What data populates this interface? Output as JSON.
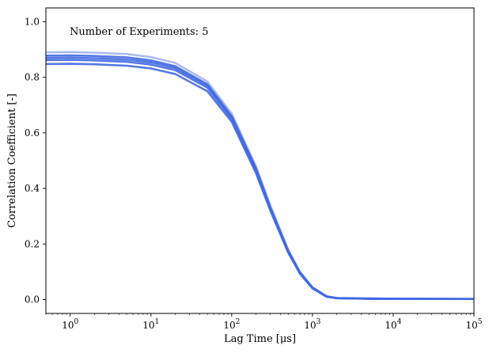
{
  "chart_data": {
    "type": "line",
    "annotation": "Number of Experiments: 5",
    "xlabel": "Lag Time [μs]",
    "ylabel": "Correlation Coefficient [-]",
    "xscale": "log",
    "xlim": [
      0.5,
      100000
    ],
    "ylim": [
      -0.05,
      1.05
    ],
    "x_ticks": [
      1,
      10,
      100,
      1000,
      10000,
      100000
    ],
    "x_tick_labels": [
      {
        "base": "10",
        "exp": "0"
      },
      {
        "base": "10",
        "exp": "1"
      },
      {
        "base": "10",
        "exp": "2"
      },
      {
        "base": "10",
        "exp": "3"
      },
      {
        "base": "10",
        "exp": "4"
      },
      {
        "base": "10",
        "exp": "5"
      }
    ],
    "y_ticks": [
      0.0,
      0.2,
      0.4,
      0.6,
      0.8,
      1.0
    ],
    "y_tick_labels": [
      "0.0",
      "0.2",
      "0.4",
      "0.6",
      "0.8",
      "1.0"
    ],
    "grid": false,
    "line_color": "#4169e1",
    "x": [
      0.5,
      1,
      2,
      5,
      10,
      20,
      50,
      100,
      200,
      300,
      500,
      700,
      1000,
      1500,
      2000,
      3000,
      5000,
      10000,
      30000,
      100000
    ],
    "series": [
      {
        "values": [
          0.89,
          0.891,
          0.889,
          0.884,
          0.873,
          0.852,
          0.785,
          0.67,
          0.48,
          0.34,
          0.18,
          0.1,
          0.045,
          0.012,
          0.006,
          0.005,
          0.004,
          0.003,
          0.003,
          0.003
        ]
      },
      {
        "values": [
          0.878,
          0.879,
          0.877,
          0.872,
          0.861,
          0.84,
          0.775,
          0.66,
          0.472,
          0.333,
          0.176,
          0.098,
          0.043,
          0.011,
          0.005,
          0.004,
          0.004,
          0.003,
          0.003,
          0.002
        ]
      },
      {
        "values": [
          0.87,
          0.871,
          0.869,
          0.864,
          0.854,
          0.834,
          0.77,
          0.656,
          0.468,
          0.33,
          0.174,
          0.096,
          0.042,
          0.011,
          0.005,
          0.004,
          0.003,
          0.003,
          0.002,
          0.002
        ]
      },
      {
        "values": [
          0.862,
          0.863,
          0.861,
          0.856,
          0.846,
          0.826,
          0.763,
          0.65,
          0.463,
          0.327,
          0.172,
          0.095,
          0.041,
          0.01,
          0.005,
          0.004,
          0.003,
          0.002,
          0.002,
          0.002
        ]
      },
      {
        "values": [
          0.848,
          0.849,
          0.847,
          0.842,
          0.832,
          0.812,
          0.75,
          0.64,
          0.455,
          0.321,
          0.169,
          0.093,
          0.04,
          0.01,
          0.005,
          0.004,
          0.003,
          0.002,
          0.002,
          0.002
        ]
      }
    ]
  }
}
